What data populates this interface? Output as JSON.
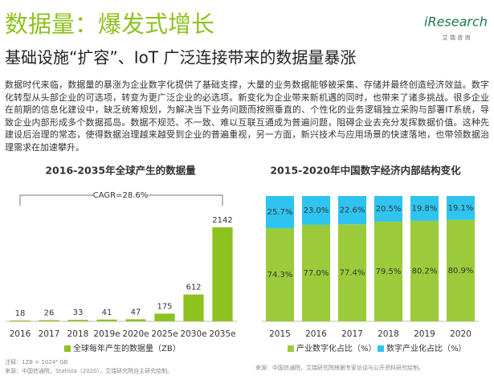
{
  "header": {
    "title": "数据量：爆发式增长",
    "subtitle": "基础设施“扩容”、IoT 广泛连接带来的数据量暴涨",
    "logo": "iResearch",
    "logo_sub": "艾 瑞 咨 询"
  },
  "body": "数据时代来临，数据量的暴涨为企业数字化提供了基础支撑，大量的业务数据能够被采集、存储并最终创造经济效益。数字化转型从头部企业的可选项，转变为更广泛企业的必选项。新变化为企业带来新机遇的同时，也带来了诸多挑战。很多企业在前期的信息化建设中，缺乏统筹规划，为解决当下业务问题而按照垂直的、个性化的业务逻辑独立采购与部署IT系统，导致企业内部形成多个数据孤岛。数据不规范、不一致、难以互联互通成为普遍问题，阻碍企业去充分发挥数据价值。这种先建设后治理的常态，使得数据治理越来越受到企业的普遍重视，另一方面，新兴技术与应用场景的快速落地，也带领数据治理需求在加速攀升。",
  "chart_data": [
    {
      "type": "bar",
      "title": "2016-2035年全球产生的数据量",
      "categories": [
        "2016",
        "2017",
        "2018",
        "2019e",
        "2020e",
        "2025e",
        "2030e",
        "2035e"
      ],
      "series": [
        {
          "name": "全球每年产生的数据量（ZB）",
          "color": "#8dc21f",
          "values": [
            18,
            26,
            33,
            41,
            47,
            175,
            612,
            2142
          ]
        }
      ],
      "annotation": "CAGR=28.6%",
      "notes": [
        "注释：1ZB = 1024⁴ GB",
        "来源：中国信通院，Statista（2020），艾瑞研究院自主研究绘制。"
      ]
    },
    {
      "type": "bar",
      "stacked": true,
      "title": "2015-2020年中国数字经济内部结构变化",
      "categories": [
        "2015",
        "2016",
        "2017",
        "2018",
        "2019",
        "2020"
      ],
      "series": [
        {
          "name": "产业数字化占比（%）",
          "color": "#9bcb3b",
          "values": [
            74.3,
            77.0,
            77.4,
            79.5,
            80.2,
            80.9
          ],
          "value_labels": [
            "74.3%",
            "77.0%",
            "77.4%",
            "79.5%",
            "80.2%",
            "80.9%"
          ]
        },
        {
          "name": "数字产业化占比（%）",
          "color": "#2ec4ef",
          "values": [
            25.7,
            23.0,
            22.6,
            20.5,
            19.8,
            19.1
          ],
          "value_labels": [
            "25.7%",
            "23.0%",
            "22.6%",
            "20.5%",
            "19.8%",
            "19.1%"
          ]
        }
      ],
      "notes": [
        "来源：中国信通院，艾瑞研究院根据专家访谈与公开资料研究绘制。"
      ]
    }
  ]
}
